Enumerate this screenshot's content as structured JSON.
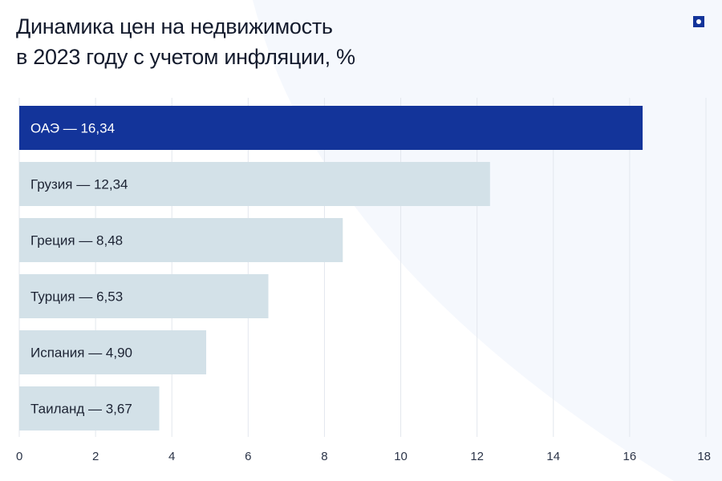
{
  "title_line1": "Динамика цен на недвижимость",
  "title_line2": "в 2023 году с учетом инфляции, %",
  "logo_icon": "square-dot-logo",
  "colors": {
    "highlight": "#13349a",
    "bar": "#d3e1e8",
    "grid": "#e3e7ee",
    "background_shape": "#f5f8fd"
  },
  "chart_data": {
    "type": "bar",
    "orientation": "horizontal",
    "title": "Динамика цен на недвижимость в 2023 году с учетом инфляции, %",
    "categories": [
      "ОАЭ",
      "Грузия",
      "Греция",
      "Турция",
      "Испания",
      "Таиланд"
    ],
    "values": [
      16.34,
      12.34,
      8.48,
      6.53,
      4.9,
      3.67
    ],
    "data_labels": [
      "ОАЭ — 16,34",
      "Грузия — 12,34",
      "Греция — 8,48",
      "Турция — 6,53",
      "Испания — 4,90",
      "Таиланд — 3,67"
    ],
    "highlighted_category": "ОАЭ",
    "xlim": [
      0,
      18
    ],
    "xticks": [
      0,
      2,
      4,
      6,
      8,
      10,
      12,
      14,
      16,
      18
    ],
    "grid": true,
    "xlabel": "",
    "ylabel": ""
  }
}
